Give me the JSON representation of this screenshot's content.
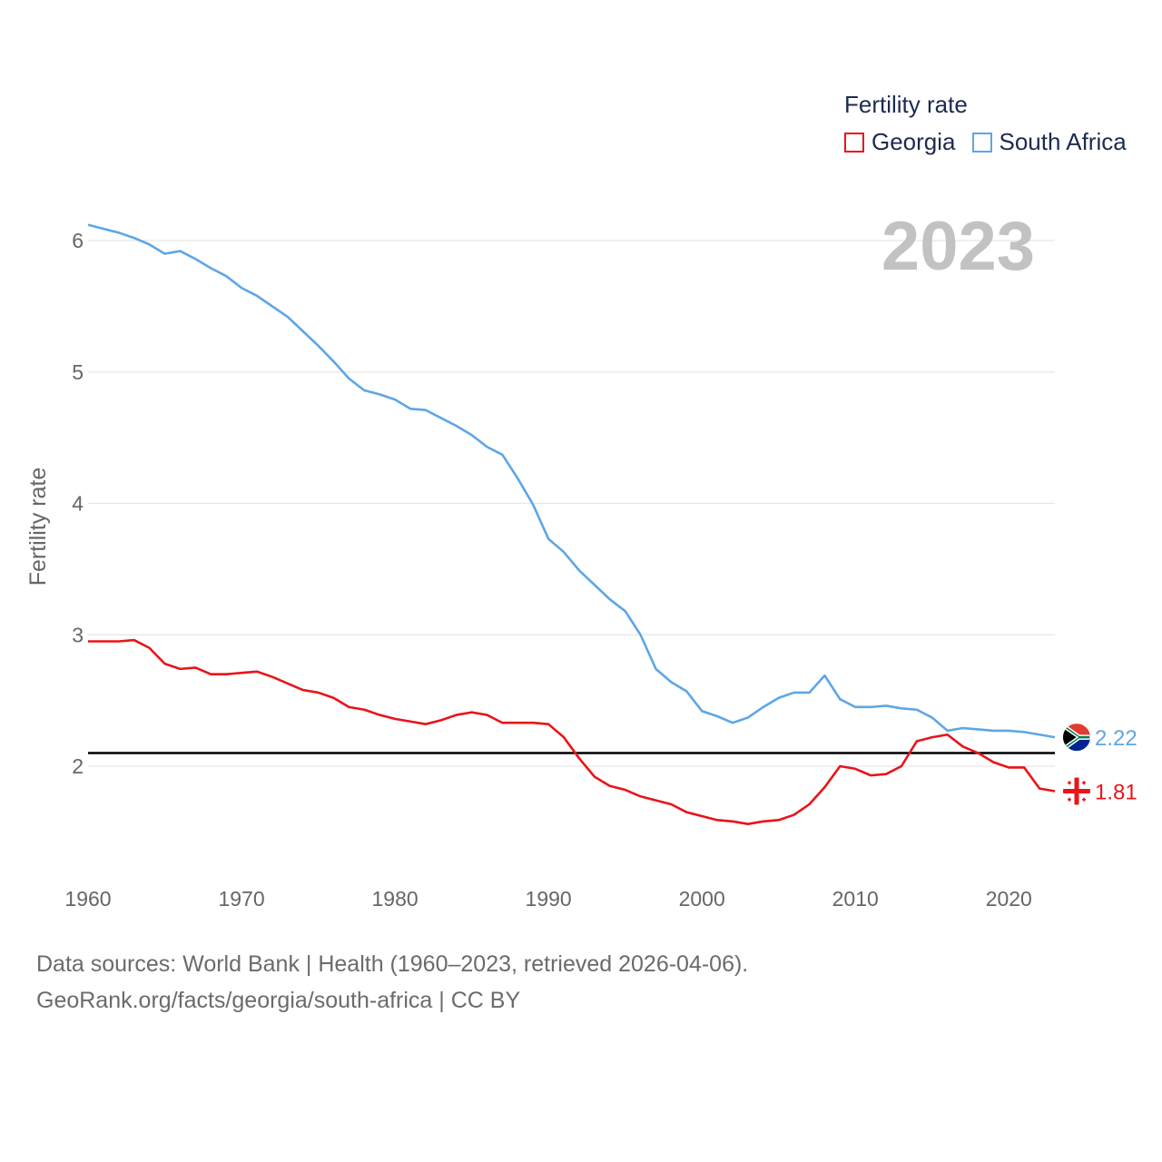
{
  "legend": {
    "title": "Fertility rate",
    "items": [
      {
        "name": "Georgia",
        "color": "#e8141a"
      },
      {
        "name": "South Africa",
        "color": "#5ea6e6"
      }
    ]
  },
  "year_stamp": "2023",
  "footer": {
    "line1": "Data sources: World Bank | Health (1960–2023, retrieved 2026-04-06).",
    "line2": "GeoRank.org/facts/georgia/south-africa | CC BY"
  },
  "end_labels": {
    "south_africa": "2.22",
    "georgia": "1.81"
  },
  "icons": {
    "south_africa_flag": "south-africa-flag-icon",
    "georgia_flag": "georgia-flag-icon"
  },
  "chart_data": {
    "type": "line",
    "title": "",
    "xlabel": "",
    "ylabel": "Fertility rate",
    "xlim": [
      1960,
      2023
    ],
    "ylim": [
      1.2,
      6.3
    ],
    "x_ticks": [
      1960,
      1970,
      1980,
      1990,
      2000,
      2010,
      2020
    ],
    "y_ticks": [
      2,
      3,
      4,
      5,
      6
    ],
    "reference_line": {
      "y": 2.1,
      "color": "#000000"
    },
    "x": [
      1960,
      1961,
      1962,
      1963,
      1964,
      1965,
      1966,
      1967,
      1968,
      1969,
      1970,
      1971,
      1972,
      1973,
      1974,
      1975,
      1976,
      1977,
      1978,
      1979,
      1980,
      1981,
      1982,
      1983,
      1984,
      1985,
      1986,
      1987,
      1988,
      1989,
      1990,
      1991,
      1992,
      1993,
      1994,
      1995,
      1996,
      1997,
      1998,
      1999,
      2000,
      2001,
      2002,
      2003,
      2004,
      2005,
      2006,
      2007,
      2008,
      2009,
      2010,
      2011,
      2012,
      2013,
      2014,
      2015,
      2016,
      2017,
      2018,
      2019,
      2020,
      2021,
      2022,
      2023
    ],
    "series": [
      {
        "name": "South Africa",
        "color": "#5ea6e6",
        "values": [
          6.12,
          6.09,
          6.06,
          6.02,
          5.97,
          5.9,
          5.92,
          5.86,
          5.79,
          5.73,
          5.64,
          5.58,
          5.5,
          5.42,
          5.31,
          5.2,
          5.08,
          4.95,
          4.86,
          4.83,
          4.79,
          4.72,
          4.71,
          4.65,
          4.59,
          4.52,
          4.43,
          4.37,
          4.19,
          3.99,
          3.73,
          3.63,
          3.49,
          3.38,
          3.27,
          3.18,
          3.0,
          2.74,
          2.64,
          2.57,
          2.42,
          2.38,
          2.33,
          2.37,
          2.45,
          2.52,
          2.56,
          2.56,
          2.69,
          2.51,
          2.45,
          2.45,
          2.46,
          2.44,
          2.43,
          2.37,
          2.27,
          2.29,
          2.28,
          2.27,
          2.27,
          2.26,
          2.24,
          2.22
        ]
      },
      {
        "name": "Georgia",
        "color": "#e8141a",
        "values": [
          2.95,
          2.95,
          2.95,
          2.96,
          2.9,
          2.78,
          2.74,
          2.75,
          2.7,
          2.7,
          2.71,
          2.72,
          2.68,
          2.63,
          2.58,
          2.56,
          2.52,
          2.45,
          2.43,
          2.39,
          2.36,
          2.34,
          2.32,
          2.35,
          2.39,
          2.41,
          2.39,
          2.33,
          2.33,
          2.33,
          2.32,
          2.22,
          2.06,
          1.92,
          1.85,
          1.82,
          1.77,
          1.74,
          1.71,
          1.65,
          1.62,
          1.59,
          1.58,
          1.56,
          1.58,
          1.59,
          1.63,
          1.71,
          1.84,
          2.0,
          1.98,
          1.93,
          1.94,
          2.0,
          2.19,
          2.22,
          2.24,
          2.15,
          2.1,
          2.03,
          1.99,
          1.99,
          1.83,
          1.81
        ]
      }
    ]
  }
}
